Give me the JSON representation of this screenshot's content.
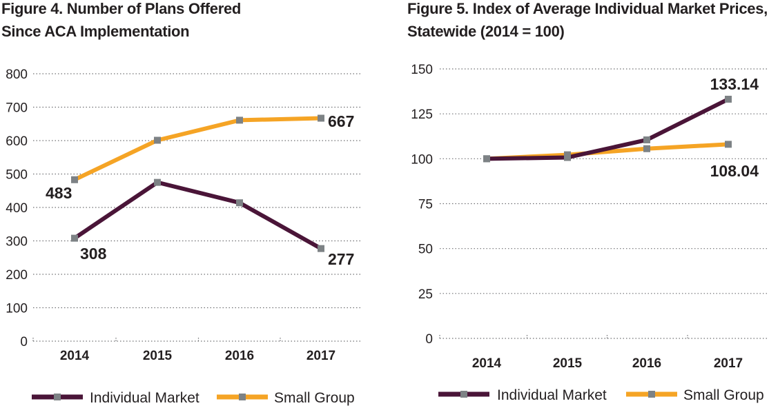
{
  "chart_data": [
    {
      "type": "line",
      "title_line1": "Figure 4. Number of Plans Offered",
      "title_line2": "Since ACA Implementation",
      "categories": [
        "2014",
        "2015",
        "2016",
        "2017"
      ],
      "series": [
        {
          "name": "Individual Market",
          "values": [
            308,
            475,
            414,
            277
          ],
          "color": "#4a1538"
        },
        {
          "name": "Small Group",
          "values": [
            483,
            601,
            661,
            667
          ],
          "color": "#f5a425"
        }
      ],
      "ylim": [
        0,
        800
      ],
      "yticks": [
        "0",
        "100",
        "200",
        "300",
        "400",
        "500",
        "600",
        "700",
        "800"
      ],
      "data_labels": {
        "s0_first": "308",
        "s0_last": "277",
        "s1_first": "483",
        "s1_last": "667"
      },
      "grid": true,
      "legend_position": "bottom"
    },
    {
      "type": "line",
      "title_line1": "Figure 5. Index of Average Individual Market Prices,",
      "title_line2": "Statewide (2014 = 100)",
      "categories": [
        "2014",
        "2015",
        "2016",
        "2017"
      ],
      "series": [
        {
          "name": "Individual Market",
          "values": [
            100,
            100.7,
            110.5,
            133.14
          ],
          "color": "#4a1538"
        },
        {
          "name": "Small Group",
          "values": [
            100,
            102.2,
            105.6,
            108.04
          ],
          "color": "#f5a425"
        }
      ],
      "ylim": [
        0,
        150
      ],
      "yticks": [
        "0",
        "25",
        "50",
        "75",
        "100",
        "125",
        "150"
      ],
      "data_labels": {
        "s0_last": "133.14",
        "s1_last": "108.04"
      },
      "grid": true,
      "legend_position": "bottom"
    }
  ],
  "marker_color": "#7d8285"
}
